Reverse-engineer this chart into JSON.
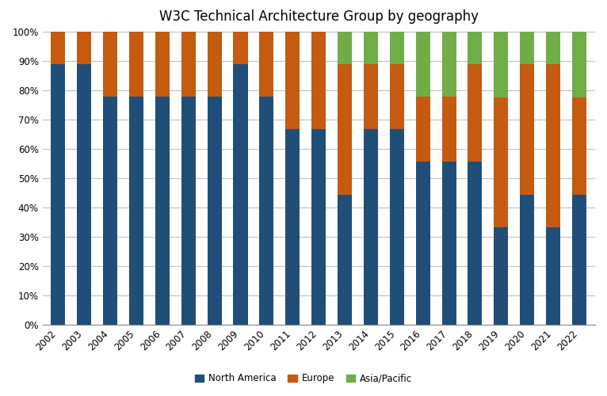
{
  "title": "W3C Technical Architecture Group by geography",
  "years": [
    2002,
    2003,
    2004,
    2005,
    2006,
    2007,
    2008,
    2009,
    2010,
    2011,
    2012,
    2013,
    2014,
    2015,
    2016,
    2017,
    2018,
    2019,
    2020,
    2021,
    2022
  ],
  "north_america": [
    0.889,
    0.889,
    0.778,
    0.778,
    0.778,
    0.778,
    0.778,
    0.889,
    0.778,
    0.667,
    0.667,
    0.444,
    0.667,
    0.667,
    0.556,
    0.556,
    0.556,
    0.333,
    0.444,
    0.333,
    0.444
  ],
  "europe": [
    0.111,
    0.111,
    0.222,
    0.222,
    0.222,
    0.222,
    0.222,
    0.111,
    0.222,
    0.333,
    0.333,
    0.444,
    0.222,
    0.222,
    0.222,
    0.222,
    0.333,
    0.444,
    0.444,
    0.556,
    0.333
  ],
  "asia_pacific": [
    0.0,
    0.0,
    0.0,
    0.0,
    0.0,
    0.0,
    0.0,
    0.0,
    0.0,
    0.0,
    0.0,
    0.111,
    0.111,
    0.111,
    0.222,
    0.222,
    0.111,
    0.222,
    0.111,
    0.111,
    0.222
  ],
  "color_na": "#1F4E79",
  "color_eu": "#C55A11",
  "color_ap": "#70AD47",
  "legend_labels": [
    "North America",
    "Europe",
    "Asia/Pacific"
  ],
  "background_color": "#FFFFFF",
  "plot_bg_color": "#FFFFFF",
  "grid_color": "#C0C0C0"
}
